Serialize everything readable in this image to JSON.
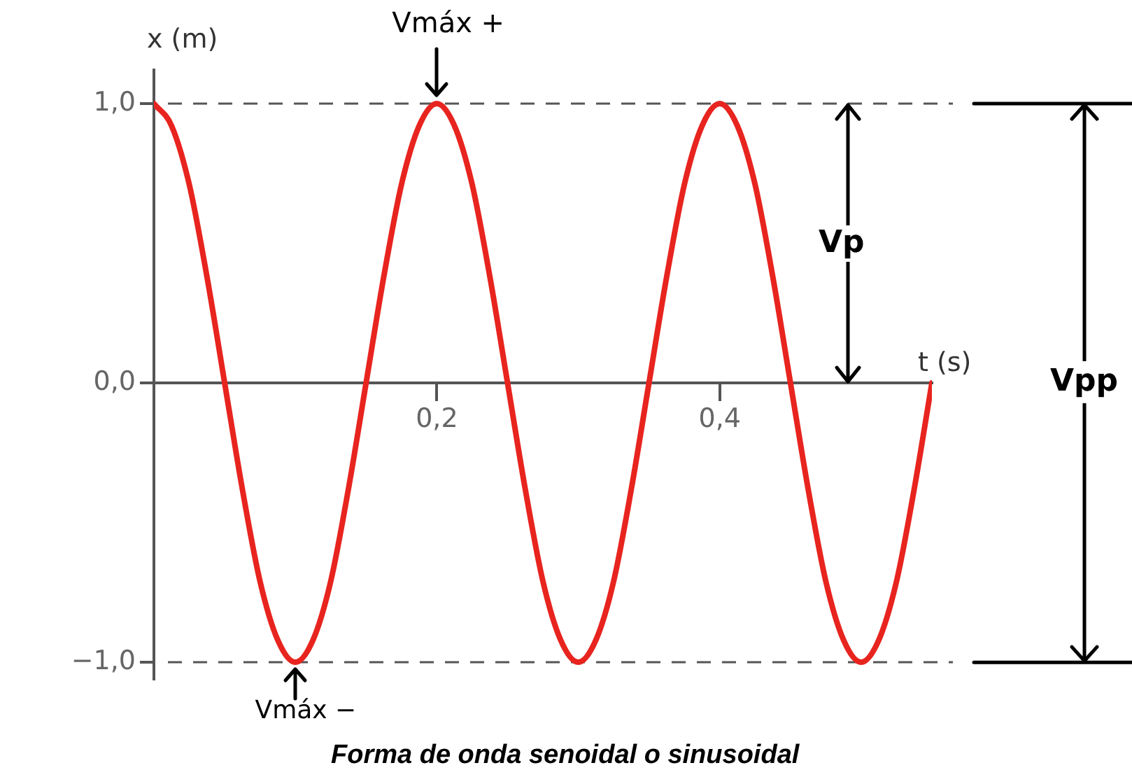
{
  "chart_data": {
    "type": "line",
    "title": "Forma de onda senoidal o sinusoidal",
    "xlabel": "t (s)",
    "ylabel": "x (m)",
    "x": [
      0,
      0.0125,
      0.025,
      0.0375,
      0.05,
      0.0625,
      0.075,
      0.0875,
      0.1,
      0.1125,
      0.125,
      0.1375,
      0.15,
      0.1625,
      0.175,
      0.1875,
      0.2,
      0.2125,
      0.225,
      0.2375,
      0.25,
      0.2625,
      0.275,
      0.2875,
      0.3,
      0.3125,
      0.325,
      0.3375,
      0.35,
      0.3625,
      0.375,
      0.3875,
      0.4,
      0.4125,
      0.425,
      0.4375,
      0.45,
      0.4625,
      0.475,
      0.4875,
      0.5,
      0.5125,
      0.525,
      0.5375,
      0.55
    ],
    "series": [
      {
        "color": "#e8241f",
        "values": [
          1,
          0.92,
          0.71,
          0.38,
          0,
          -0.38,
          -0.71,
          -0.92,
          -1,
          -0.92,
          -0.71,
          -0.38,
          0,
          0.38,
          0.71,
          0.92,
          1,
          0.92,
          0.71,
          0.38,
          0,
          -0.38,
          -0.71,
          -0.92,
          -1,
          -0.92,
          -0.71,
          -0.38,
          0,
          0.38,
          0.71,
          0.92,
          1,
          0.92,
          0.71,
          0.38,
          0,
          -0.38,
          -0.71,
          -0.92,
          -1,
          -0.92,
          -0.71,
          -0.38,
          0
        ]
      }
    ],
    "xlim": [
      0,
      0.55
    ],
    "ylim": [
      -1.06,
      1.12
    ],
    "xticks": [
      {
        "value": 0.2,
        "label": "0,2"
      },
      {
        "value": 0.4,
        "label": "0,4"
      }
    ],
    "yticks": [
      {
        "value": -1,
        "label": "−1,0"
      },
      {
        "value": 0,
        "label": "0,0"
      },
      {
        "value": 1,
        "label": "1,0"
      }
    ],
    "ref_lines": [
      {
        "axis": "y",
        "value": 1,
        "color": "#555555",
        "line_style": "dashed"
      },
      {
        "axis": "y",
        "value": -1,
        "color": "#555555",
        "line_style": "dashed"
      }
    ],
    "annotations": [
      {
        "text": "Vmáx +",
        "x": 0.2,
        "y": 1
      },
      {
        "text": "Vmáx −",
        "x": 0.1,
        "y": -1
      },
      "Vp",
      "Vpp"
    ],
    "grid": false,
    "legend": false,
    "marker": "none",
    "line_style": "solid"
  }
}
